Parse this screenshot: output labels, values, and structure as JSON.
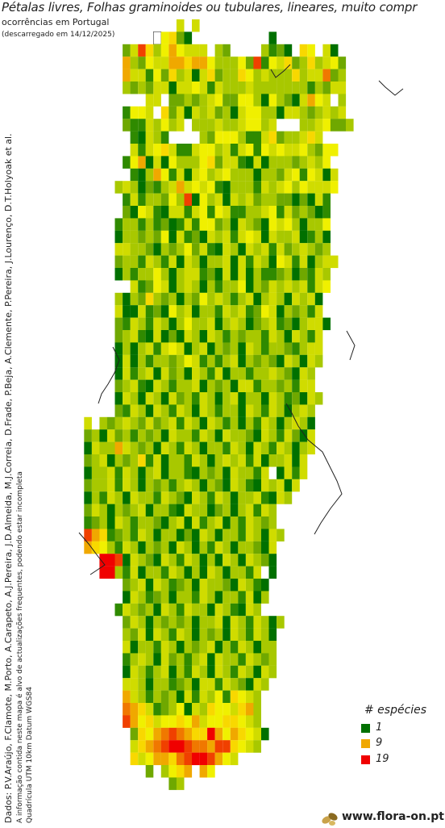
{
  "header": {
    "title": "Pétalas livres, Folhas graminoides ou tubulares, lineares, muito compr",
    "subtitle": "ocorrências em Portugal",
    "download_date": "(descarregado em 14/12/2025)"
  },
  "side_text": {
    "credits": "Dados: P.V.Araújo, F.Clamote, M.Porto, A.Carapeto, A.J.Pereira, J.D.Almeida, M.J.Correia, D.Frade, P.Beja, A.Clemente, P.Pereira, J.Lourenço, D.T.Holyoak et al.",
    "disclaimer": "A informação contida neste mapa é alvo de actualizações frequentes, podendo estar incompleta",
    "grid_info": "Quadrícula UTM 10km Datum WGS84"
  },
  "legend": {
    "title": "# espécies",
    "items": [
      {
        "label": "1",
        "color": "#007000"
      },
      {
        "label": "9",
        "color": "#f0a800"
      },
      {
        "label": "19",
        "color": "#f00000"
      }
    ]
  },
  "footer": {
    "site": "www.flora-on.pt"
  },
  "colors": {
    "scale": [
      "#ffffff",
      "#007000",
      "#2f8a00",
      "#6fa800",
      "#a8c800",
      "#d0dc00",
      "#f0f000",
      "#f8d800",
      "#f0a800",
      "#f07800",
      "#f04000",
      "#f00000"
    ]
  },
  "map_data": {
    "description_rows": [
      "..................e.e.......................",
      "...............0fgca..........1.............",
      "...........cejgdfhf5ee.dc....d2ca.7f.e1.....",
      "...........hd36e5h8ghhfdddfcj2fe7cdgdefc....",
      "...........h5e2fc7d51e7cdd7fd5ddd7de5i3d....",
      "...........dc4ce51ee6e2eddde4dddddd2d3ee....",
      "..............ee.ccdcdef3cffd1fd31ehfe.d....",
      "...........2ffe.gc51ed5cd1effdd1eedcdede....",
      "...........c22edfde.ddde4deffde...ddefccd...",
      "............21ed2....dcfffd22e7cd4e7e.......",
      "............e2ef7e22effde2ef2fef5efdcff.....",
      "...........2fh1e1f4ddf7cee21e1dddcdedf......",
      "............21dhf2e1efdefddd1ddcef2fe1e.....",
      "..........ded1c24ehefef21ddd2edefdfeeef.....",
      "...........2e2ddcf4j1fde1edecddcc1c1e2......",
      "...........c1fe21ee2ef2fe22ddef2ecdc12......",
      "..........2dd2d2c12e2ffcd1edc1fefd1ddf......",
      "..........1ddcdcf1e2c1ede2efe1edde12d1......",
      "..........eeddc1dcdfce21ed1ede2ecdedcd......",
      "..........cdd2ed2e1ed1dde1e2ed1fe2e1dee.....",
      "..........1d2ddfd1dee2c1e1e1d22cd1c2ed......",
      "............e2cfe1ded1d2ddf1dcedede2ef......",
      "..........d1dcgdcd1dcfded2de1ded1ede1.......",
      "..........e11e2c1fde1dd2ede2cfe1dcd2e.......",
      "..........c2ed2ed1dfdde1ded1cde2c1dee1......",
      "..........cde21e1c1ed1ed2dcdd2ed1ed2e.......",
      "..........1d1de2efe1de1dcd1ed2ddc2dee.......",
      "..........1e1d2ddcdfe2d2de1dcdc1ed1ed.......",
      "..........1e2de1ecd1ed2e1dd2ddedc1ed........",
      "..........cde21ed2dde1dcd1ee2ddcd2ee........",
      "..........1ed1ed1ecd2ed1de1dd1ed2c1ed.......",
      "..........c2ed1ed2ed1ed2dd1ed2ed1ded........",
      "......e.dcdedcecde2ed1ed2d1d2ed1ded1........",
      "......cd1ecd2dcd1edd2ed1eddc1ed2ec1e........",
      "......1eddhedcd1ed2ed1dd2ed1ed2ed1de........",
      "......cde1dcdg2e1dd2ed1dede2e1dde1e.........",
      "......1dde2ed1de1dd21dcd1edd2e.1e2e.........",
      "......cdde2ed1dcd2ded1dc1ed21ede1e..........",
      "......1d2ed1edd2edc1ed2ed1dde21ed...........",
      "......ced1dcde1dd21edd1cd1de2ed.............",
      "......2cd1ed2ddc1de1e2de1d2edcd.............",
      "......jhg2cd2ed1dd1c1ed1dd2ed1ed............",
      "......hgfd2ed1dcd1ed1d2ed1ddc1e.............",
      "........kkj1edc1ed2ed1d1ed1edc1.............",
      "........kkd2e1dd2ed1d1ed1dd2e.1.............",
      "...........cde1ed2cd1eddc1ed21..............",
      "...........1ed2cd1dd2ed1dd2e1d..............",
      "..........2edcd1ed2edd1ed21ed...............",
      "...........ced1dcdcd1dde1ed2ed1d............",
      "...........dce1ed2ed1dcd1ed2ed1.............",
      "...........e1dd2ed1dcde1d2ed1dd.............",
      "...........2ded1ecd2de1edd2edcd.............",
      "...........1ed2de1d2ed1ed2ed1ed.............",
      "...........eed1dd2cd1ee2edc1ed..............",
      "...........hed2dcd1e2edf2gfed...............",
      "...........ihge2cdf1edgffeghd...............",
      "...........jhfgeffgfheffggfed...............",
      "............cgfhijihggkhfhgfe1..............",
      "............eghijkkjiihjjgfed...............",
      "............gefhhgijkkjhfe..................",
      "..............c.dfgh.hf.....................",
      ".................cd.........................",
      "............................................",
      "............................................",
      "............................................"
    ]
  }
}
